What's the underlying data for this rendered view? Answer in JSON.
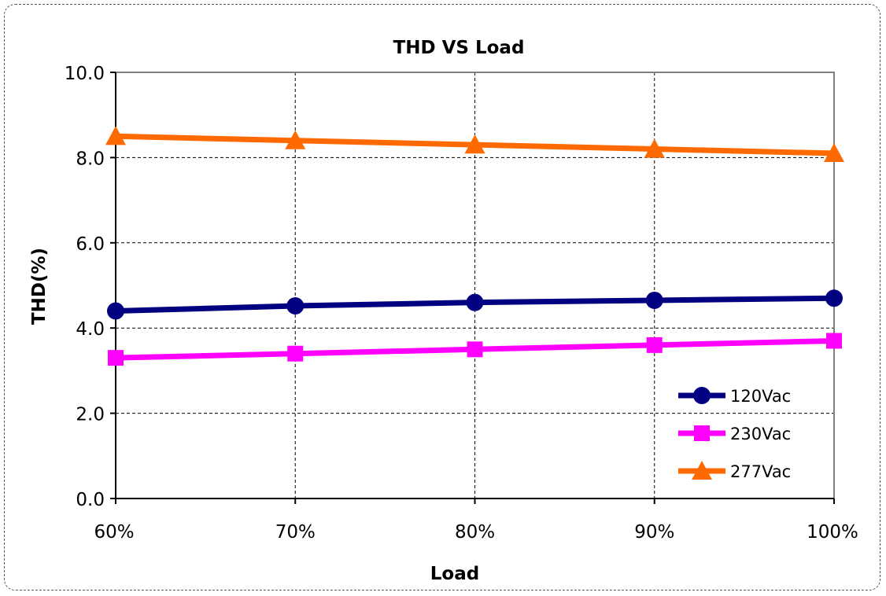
{
  "chart_data": {
    "type": "line",
    "title": "THD VS  Load",
    "xlabel": "Load",
    "ylabel": "THD(%)",
    "categories": [
      "60%",
      "70%",
      "80%",
      "90%",
      "100%"
    ],
    "ylim": [
      0,
      10
    ],
    "yticks": [
      "0.0",
      "2.0",
      "4.0",
      "6.0",
      "8.0",
      "10.0"
    ],
    "yticks_values": [
      0,
      2,
      4,
      6,
      8,
      10
    ],
    "grid": true,
    "legend_position": "bottom-right",
    "series": [
      {
        "name": "120Vac",
        "values": [
          4.4,
          4.52,
          4.6,
          4.65,
          4.7
        ],
        "color": "#000080",
        "marker": "circle"
      },
      {
        "name": "230Vac",
        "values": [
          3.3,
          3.4,
          3.5,
          3.6,
          3.7
        ],
        "color": "#FF00FF",
        "marker": "square"
      },
      {
        "name": "277Vac",
        "values": [
          8.5,
          8.4,
          8.3,
          8.2,
          8.1
        ],
        "color": "#FF6A00",
        "marker": "triangle"
      }
    ]
  }
}
